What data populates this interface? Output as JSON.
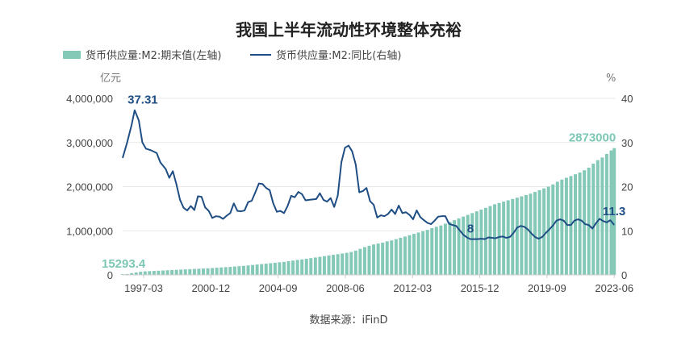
{
  "chart_data": {
    "type": "bar+line",
    "title": "我国上半年流动性环境整体充裕",
    "source": "数据来源：iFinD",
    "colors": {
      "bar": "#84c9b8",
      "line": "#1f4e84",
      "bar_label": "#7dc7b5",
      "line_label": "#1f4e84",
      "grid": "#e9e9e9"
    },
    "left_axis": {
      "unit": "亿元",
      "min": 0,
      "max": 4000000,
      "ticks": [
        0,
        1000000,
        2000000,
        3000000,
        4000000
      ],
      "tick_labels": [
        "0",
        "1,000,000",
        "2,000,000",
        "3,000,000",
        "4,000,000"
      ]
    },
    "right_axis": {
      "unit": "%",
      "min": 0,
      "max": 40,
      "ticks": [
        0,
        10,
        20,
        30,
        40
      ],
      "tick_labels": [
        "0",
        "10",
        "20",
        "30",
        "40"
      ]
    },
    "x_range": [
      1996.0,
      2023.5
    ],
    "x_ticks": [
      {
        "label": "1997-03",
        "value": 1997.17
      },
      {
        "label": "2000-12",
        "value": 2000.92
      },
      {
        "label": "2004-09",
        "value": 2004.67
      },
      {
        "label": "2008-06",
        "value": 2008.42
      },
      {
        "label": "2012-03",
        "value": 2012.17
      },
      {
        "label": "2015-12",
        "value": 2015.92
      },
      {
        "label": "2019-09",
        "value": 2019.67
      },
      {
        "label": "2023-06",
        "value": 2023.42
      }
    ],
    "series": [
      {
        "name": "货币供应量:M2:期末值(左轴)",
        "type": "bar",
        "axis": "left",
        "points": [
          [
            1996.0,
            15293.4
          ],
          [
            1996.25,
            20000
          ],
          [
            1996.5,
            40000
          ],
          [
            1996.75,
            55000
          ],
          [
            1997.0,
            70000
          ],
          [
            1997.25,
            80000
          ],
          [
            1997.5,
            85000
          ],
          [
            1997.75,
            90000
          ],
          [
            1998.0,
            95000
          ],
          [
            1998.25,
            100000
          ],
          [
            1998.5,
            105000
          ],
          [
            1998.75,
            110000
          ],
          [
            1999.0,
            115000
          ],
          [
            1999.25,
            120000
          ],
          [
            1999.5,
            125000
          ],
          [
            1999.75,
            130000
          ],
          [
            2000.0,
            135000
          ],
          [
            2000.25,
            140000
          ],
          [
            2000.5,
            145000
          ],
          [
            2000.75,
            150000
          ],
          [
            2001.0,
            155000
          ],
          [
            2001.25,
            162000
          ],
          [
            2001.5,
            168000
          ],
          [
            2001.75,
            175000
          ],
          [
            2002.0,
            182000
          ],
          [
            2002.25,
            190000
          ],
          [
            2002.5,
            198000
          ],
          [
            2002.75,
            205000
          ],
          [
            2003.0,
            215000
          ],
          [
            2003.25,
            225000
          ],
          [
            2003.5,
            235000
          ],
          [
            2003.75,
            245000
          ],
          [
            2004.0,
            255000
          ],
          [
            2004.25,
            265000
          ],
          [
            2004.5,
            275000
          ],
          [
            2004.75,
            285000
          ],
          [
            2005.0,
            295000
          ],
          [
            2005.25,
            310000
          ],
          [
            2005.5,
            325000
          ],
          [
            2005.75,
            340000
          ],
          [
            2006.0,
            350000
          ],
          [
            2006.25,
            365000
          ],
          [
            2006.5,
            380000
          ],
          [
            2006.75,
            395000
          ],
          [
            2007.0,
            410000
          ],
          [
            2007.25,
            425000
          ],
          [
            2007.5,
            440000
          ],
          [
            2007.75,
            455000
          ],
          [
            2008.0,
            470000
          ],
          [
            2008.25,
            485000
          ],
          [
            2008.5,
            500000
          ],
          [
            2008.75,
            520000
          ],
          [
            2009.0,
            550000
          ],
          [
            2009.25,
            590000
          ],
          [
            2009.5,
            630000
          ],
          [
            2009.75,
            660000
          ],
          [
            2010.0,
            690000
          ],
          [
            2010.25,
            710000
          ],
          [
            2010.5,
            730000
          ],
          [
            2010.75,
            760000
          ],
          [
            2011.0,
            780000
          ],
          [
            2011.25,
            810000
          ],
          [
            2011.5,
            840000
          ],
          [
            2011.75,
            870000
          ],
          [
            2012.0,
            900000
          ],
          [
            2012.25,
            930000
          ],
          [
            2012.5,
            960000
          ],
          [
            2012.75,
            990000
          ],
          [
            2013.0,
            1020000
          ],
          [
            2013.25,
            1060000
          ],
          [
            2013.5,
            1090000
          ],
          [
            2013.75,
            1120000
          ],
          [
            2014.0,
            1160000
          ],
          [
            2014.25,
            1200000
          ],
          [
            2014.5,
            1240000
          ],
          [
            2014.75,
            1280000
          ],
          [
            2015.0,
            1320000
          ],
          [
            2015.25,
            1360000
          ],
          [
            2015.5,
            1400000
          ],
          [
            2015.75,
            1440000
          ],
          [
            2016.0,
            1480000
          ],
          [
            2016.25,
            1520000
          ],
          [
            2016.5,
            1560000
          ],
          [
            2016.75,
            1600000
          ],
          [
            2017.0,
            1630000
          ],
          [
            2017.25,
            1660000
          ],
          [
            2017.5,
            1690000
          ],
          [
            2017.75,
            1720000
          ],
          [
            2018.0,
            1750000
          ],
          [
            2018.25,
            1780000
          ],
          [
            2018.5,
            1810000
          ],
          [
            2018.75,
            1840000
          ],
          [
            2019.0,
            1880000
          ],
          [
            2019.25,
            1920000
          ],
          [
            2019.5,
            1960000
          ],
          [
            2019.75,
            2000000
          ],
          [
            2020.0,
            2050000
          ],
          [
            2020.25,
            2110000
          ],
          [
            2020.5,
            2160000
          ],
          [
            2020.75,
            2200000
          ],
          [
            2021.0,
            2240000
          ],
          [
            2021.25,
            2280000
          ],
          [
            2021.5,
            2320000
          ],
          [
            2021.75,
            2370000
          ],
          [
            2022.0,
            2430000
          ],
          [
            2022.25,
            2520000
          ],
          [
            2022.5,
            2600000
          ],
          [
            2022.75,
            2660000
          ],
          [
            2023.0,
            2740000
          ],
          [
            2023.25,
            2820000
          ],
          [
            2023.42,
            2873000
          ]
        ]
      },
      {
        "name": "货币供应量:M2:同比(右轴)",
        "type": "line",
        "axis": "right",
        "points": [
          [
            1996.0,
            26.5
          ],
          [
            1996.25,
            30
          ],
          [
            1996.5,
            34
          ],
          [
            1996.67,
            37.31
          ],
          [
            1996.9,
            35
          ],
          [
            1997.1,
            30
          ],
          [
            1997.3,
            28.6
          ],
          [
            1997.6,
            28.2
          ],
          [
            1997.9,
            27.6
          ],
          [
            1998.1,
            25.5
          ],
          [
            1998.4,
            24
          ],
          [
            1998.6,
            22
          ],
          [
            1998.8,
            23.5
          ],
          [
            1999.0,
            20.5
          ],
          [
            1999.2,
            17
          ],
          [
            1999.4,
            15.2
          ],
          [
            1999.6,
            14.6
          ],
          [
            1999.8,
            15.6
          ],
          [
            2000.0,
            14.7
          ],
          [
            2000.2,
            17.8
          ],
          [
            2000.4,
            17.7
          ],
          [
            2000.6,
            15.3
          ],
          [
            2000.8,
            14.5
          ],
          [
            2001.0,
            12.9
          ],
          [
            2001.2,
            13.3
          ],
          [
            2001.4,
            13.2
          ],
          [
            2001.6,
            12.7
          ],
          [
            2001.8,
            13.4
          ],
          [
            2002.0,
            14
          ],
          [
            2002.2,
            16.2
          ],
          [
            2002.4,
            14.5
          ],
          [
            2002.6,
            14.4
          ],
          [
            2002.8,
            14.6
          ],
          [
            2003.0,
            16.5
          ],
          [
            2003.2,
            16.8
          ],
          [
            2003.4,
            18.7
          ],
          [
            2003.6,
            20.7
          ],
          [
            2003.8,
            20.6
          ],
          [
            2004.0,
            19.7
          ],
          [
            2004.2,
            19.2
          ],
          [
            2004.4,
            16.2
          ],
          [
            2004.6,
            14.3
          ],
          [
            2004.8,
            14.5
          ],
          [
            2005.0,
            14
          ],
          [
            2005.2,
            15.6
          ],
          [
            2005.4,
            17.9
          ],
          [
            2005.6,
            17.6
          ],
          [
            2005.8,
            18.8
          ],
          [
            2006.0,
            18.3
          ],
          [
            2006.2,
            16.9
          ],
          [
            2006.4,
            17
          ],
          [
            2006.6,
            17.1
          ],
          [
            2006.8,
            17.2
          ],
          [
            2007.0,
            18.5
          ],
          [
            2007.2,
            17
          ],
          [
            2007.4,
            16.6
          ],
          [
            2007.6,
            17.4
          ],
          [
            2007.8,
            15.4
          ],
          [
            2008.0,
            18
          ],
          [
            2008.2,
            25.5
          ],
          [
            2008.4,
            28.8
          ],
          [
            2008.6,
            29.3
          ],
          [
            2008.8,
            28
          ],
          [
            2009.0,
            25
          ],
          [
            2009.2,
            18.7
          ],
          [
            2009.4,
            19
          ],
          [
            2009.6,
            19.7
          ],
          [
            2009.8,
            16.7
          ],
          [
            2010.0,
            15.9
          ],
          [
            2010.2,
            13
          ],
          [
            2010.4,
            13.5
          ],
          [
            2010.6,
            13.3
          ],
          [
            2010.8,
            13.8
          ],
          [
            2011.0,
            14.8
          ],
          [
            2011.2,
            13.8
          ],
          [
            2011.4,
            15.7
          ],
          [
            2011.6,
            14
          ],
          [
            2011.8,
            14.2
          ],
          [
            2012.0,
            13.6
          ],
          [
            2012.2,
            12.6
          ],
          [
            2012.4,
            14.6
          ],
          [
            2012.6,
            13.1
          ],
          [
            2012.8,
            12.4
          ],
          [
            2013.0,
            11.8
          ],
          [
            2013.2,
            11.5
          ],
          [
            2013.4,
            12.3
          ],
          [
            2013.6,
            13.2
          ],
          [
            2013.8,
            13.3
          ],
          [
            2014.0,
            13.3
          ],
          [
            2014.2,
            11.6
          ],
          [
            2014.4,
            11.3
          ],
          [
            2014.6,
            11.1
          ],
          [
            2014.8,
            10.1
          ],
          [
            2015.0,
            9.1
          ],
          [
            2015.2,
            8.5
          ],
          [
            2015.4,
            8.1
          ],
          [
            2015.6,
            8.1
          ],
          [
            2015.8,
            8.1
          ],
          [
            2016.0,
            8.2
          ],
          [
            2016.2,
            8.1
          ],
          [
            2016.4,
            8.5
          ],
          [
            2016.6,
            8.4
          ],
          [
            2016.8,
            8.3
          ],
          [
            2017.0,
            8.6
          ],
          [
            2017.2,
            8.7
          ],
          [
            2017.4,
            8.4
          ],
          [
            2017.6,
            8.6
          ],
          [
            2017.8,
            9.5
          ],
          [
            2018.0,
            10.7
          ],
          [
            2018.2,
            11.1
          ],
          [
            2018.4,
            10.9
          ],
          [
            2018.6,
            10.3
          ],
          [
            2018.8,
            9.4
          ],
          [
            2019.0,
            8.6
          ],
          [
            2019.2,
            8.2
          ],
          [
            2019.4,
            8.6
          ],
          [
            2019.6,
            9.5
          ],
          [
            2019.8,
            10.3
          ],
          [
            2020.0,
            11.2
          ],
          [
            2020.2,
            12.3
          ],
          [
            2020.4,
            12.6
          ],
          [
            2020.6,
            12.3
          ],
          [
            2020.8,
            11.3
          ],
          [
            2021.0,
            11.3
          ],
          [
            2021.2,
            12.3
          ],
          [
            2021.4,
            12.6
          ],
          [
            2021.6,
            12.3
          ],
          [
            2021.8,
            11.5
          ],
          [
            2022.0,
            11.3
          ],
          [
            2022.2,
            10.5
          ],
          [
            2022.4,
            11.7
          ],
          [
            2022.6,
            12.7
          ],
          [
            2022.8,
            12.2
          ],
          [
            2023.0,
            11.9
          ],
          [
            2023.2,
            12.4
          ],
          [
            2023.42,
            11.3
          ]
        ]
      }
    ],
    "annotations": [
      {
        "text": "37.31",
        "series": "line"
      },
      {
        "text": "11.3",
        "series": "line"
      },
      {
        "text": "8",
        "series": "line"
      },
      {
        "text": "15293.4",
        "series": "bar"
      },
      {
        "text": "2873000",
        "series": "bar"
      }
    ]
  }
}
